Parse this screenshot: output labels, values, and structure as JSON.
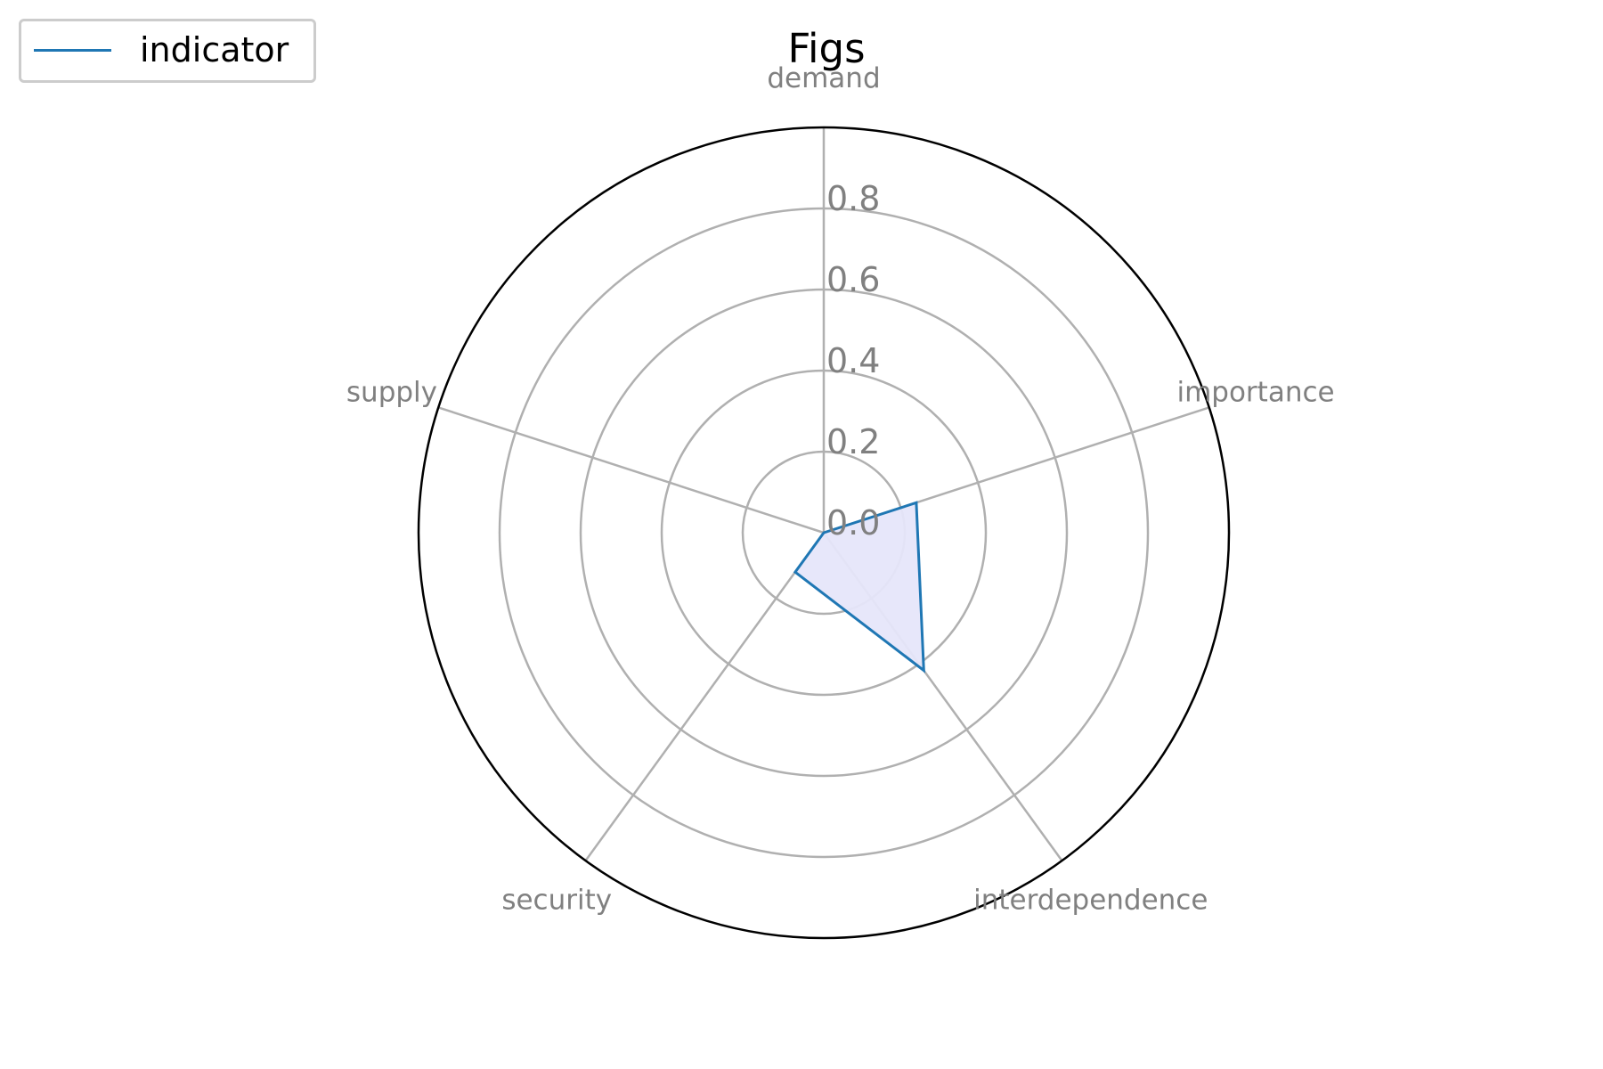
{
  "chart_data": {
    "type": "radar",
    "title": "Figs",
    "axes": [
      "demand",
      "importance",
      "interdependence",
      "security",
      "supply"
    ],
    "radial_ticks": [
      "0.0",
      "0.2",
      "0.4",
      "0.6",
      "0.8"
    ],
    "radial_tick_values": [
      0,
      0.2,
      0.4,
      0.6,
      0.8
    ],
    "rlim": [
      0,
      1.0
    ],
    "grid": true,
    "legend_position": "upper-left",
    "series": [
      {
        "name": "indicator",
        "values": [
          0.0,
          0.24,
          0.42,
          0.12,
          0.0
        ]
      }
    ],
    "colors": {
      "line": "#1f77b4",
      "fill": "#e6e6fa",
      "grid": "#b0b0b0",
      "tick_label": "#808080",
      "outer_ring": "#000000"
    }
  }
}
